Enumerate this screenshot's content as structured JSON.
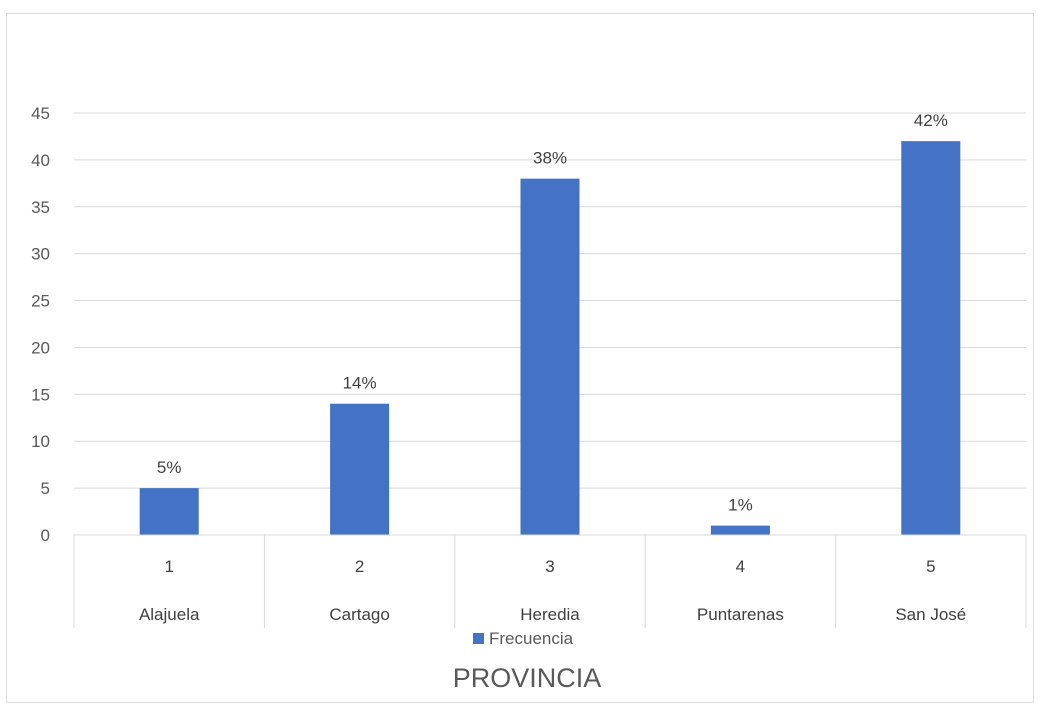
{
  "chart_data": {
    "type": "bar",
    "categories": [
      "1",
      "2",
      "3",
      "4",
      "5"
    ],
    "category_groups": [
      "Alajuela",
      "Cartago",
      "Heredia",
      "Puntarenas",
      "San José"
    ],
    "series": [
      {
        "name": "Frecuencia",
        "values": [
          5,
          14,
          38,
          1,
          42
        ],
        "color": "#4472c4"
      }
    ],
    "data_labels": [
      "5%",
      "14%",
      "38%",
      "1%",
      "42%"
    ],
    "yticks": [
      "0",
      "5",
      "10",
      "15",
      "20",
      "25",
      "30",
      "35",
      "40",
      "45"
    ],
    "ylim": [
      0,
      45
    ],
    "xlabel": "PROVINCIA",
    "ylabel": "",
    "grid": true,
    "legend_position": "bottom"
  }
}
